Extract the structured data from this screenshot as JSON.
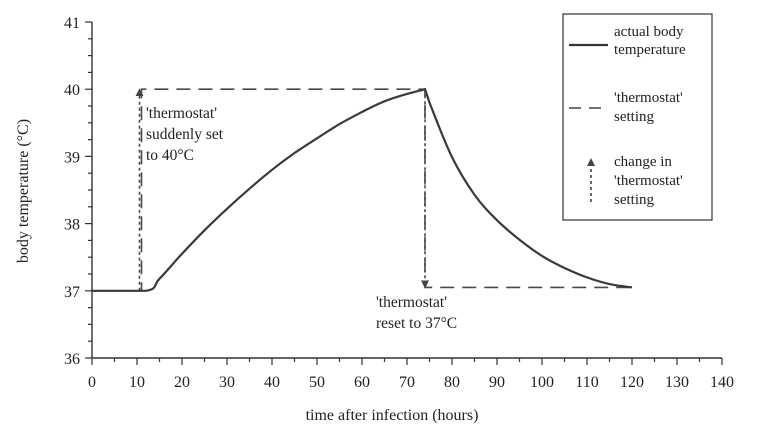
{
  "chart_data": {
    "type": "line",
    "xlabel": "time after infection (hours)",
    "ylabel": "body temperature (°C)",
    "xlim": [
      0,
      140
    ],
    "ylim": [
      36,
      41
    ],
    "xticks": [
      0,
      10,
      20,
      30,
      40,
      50,
      60,
      70,
      80,
      90,
      100,
      110,
      120,
      130,
      140
    ],
    "yticks": [
      36,
      37,
      38,
      39,
      40,
      41
    ],
    "grid": false,
    "legend_position": "top-right",
    "series": [
      {
        "name": "actual body temperature",
        "style": "solid",
        "x": [
          0,
          12,
          15,
          20,
          25,
          30,
          35,
          40,
          45,
          50,
          55,
          60,
          65,
          70,
          74,
          75,
          80,
          85,
          90,
          95,
          100,
          105,
          110,
          115,
          120
        ],
        "y": [
          37.0,
          37.0,
          37.18,
          37.55,
          37.9,
          38.22,
          38.52,
          38.8,
          39.05,
          39.27,
          39.48,
          39.66,
          39.82,
          39.93,
          40.0,
          39.8,
          38.99,
          38.43,
          38.05,
          37.76,
          37.52,
          37.34,
          37.2,
          37.1,
          37.05
        ]
      },
      {
        "name": "'thermostat' setting",
        "style": "dashed",
        "x": [
          0,
          11,
          11,
          74,
          74,
          120
        ],
        "y": [
          37,
          37,
          40,
          40,
          37.05,
          37.05
        ]
      }
    ],
    "change_arrows": [
      {
        "name": "change in 'thermostat' setting",
        "x": 11,
        "from": 37,
        "to": 40
      },
      {
        "name": "change in 'thermostat' setting",
        "x": 74,
        "from": 40,
        "to": 37.05
      }
    ],
    "annotations": [
      {
        "lines": [
          "'thermostat'",
          "suddenly set",
          "to 40°C"
        ]
      },
      {
        "lines": [
          "'thermostat'",
          "reset to 37°C"
        ]
      }
    ],
    "legend": [
      {
        "style": "solid",
        "lines": [
          "actual body",
          "temperature"
        ]
      },
      {
        "style": "dashed",
        "lines": [
          "'thermostat'",
          "setting"
        ]
      },
      {
        "style": "dotted-arrow",
        "lines": [
          "change in",
          "'thermostat'",
          "setting"
        ]
      }
    ]
  }
}
